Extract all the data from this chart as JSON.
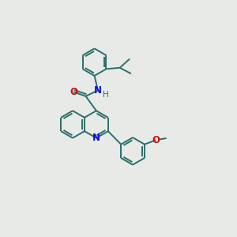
{
  "bg_color": "#e8eae8",
  "bond_color": "#2d6e6a",
  "N_color": "#1010cc",
  "O_color": "#cc1010",
  "bond_width": 1.4,
  "r_hex": 0.58,
  "xlim": [
    0,
    10
  ],
  "ylim": [
    0,
    10
  ]
}
